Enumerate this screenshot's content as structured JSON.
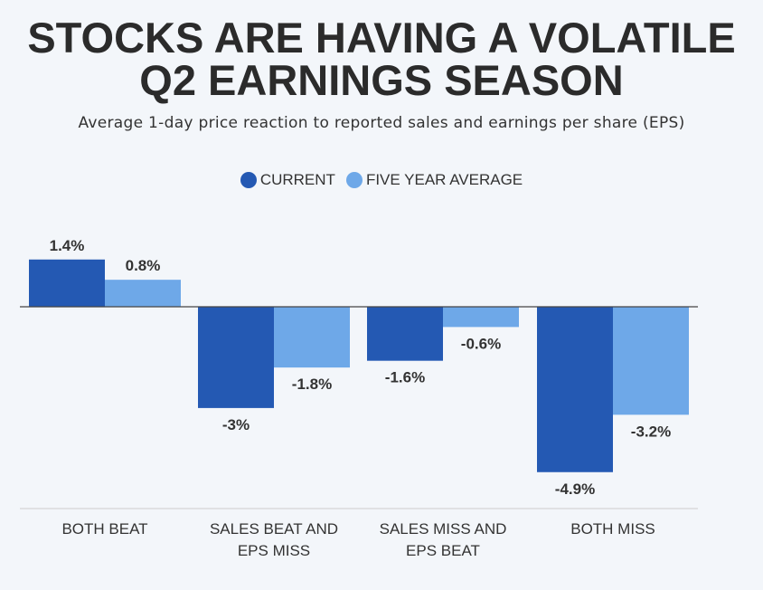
{
  "title_line1": "STOCKS ARE HAVING A VOLATILE",
  "title_line2": "Q2 EARNINGS SEASON",
  "subtitle": "Average 1-day price reaction to reported sales and earnings per share (EPS)",
  "legend": {
    "current_label": "CURRENT",
    "five_year_label": "FIVE YEAR AVERAGE"
  },
  "colors": {
    "current": "#2459b3",
    "five_year": "#6ea8e8",
    "axis": "#444444",
    "baseline_bottom": "#cccccc"
  },
  "chart_data": {
    "type": "bar",
    "title": "STOCKS ARE HAVING A VOLATILE Q2 EARNINGS SEASON",
    "subtitle": "Average 1-day price reaction to reported sales and earnings per share (EPS)",
    "categories": [
      [
        "BOTH BEAT"
      ],
      [
        "SALES BEAT AND",
        "EPS MISS"
      ],
      [
        "SALES MISS AND",
        "EPS BEAT"
      ],
      [
        "BOTH MISS"
      ]
    ],
    "series": [
      {
        "name": "CURRENT",
        "values": [
          1.4,
          -3,
          -1.6,
          -4.9
        ],
        "labels": [
          "1.4%",
          "-3%",
          "-1.6%",
          "-4.9%"
        ]
      },
      {
        "name": "FIVE YEAR AVERAGE",
        "values": [
          0.8,
          -1.8,
          -0.6,
          -3.2
        ],
        "labels": [
          "0.8%",
          "-1.8%",
          "-0.6%",
          "-3.2%"
        ]
      }
    ],
    "ylim": [
      -6,
      2
    ],
    "grid": false,
    "legend_position": "top-center"
  }
}
